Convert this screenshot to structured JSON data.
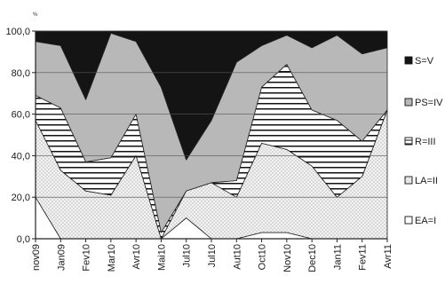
{
  "chart_data": {
    "type": "area",
    "stacked": true,
    "ylabel": "%",
    "ylim": [
      0,
      100
    ],
    "yticks": [
      "0,0",
      "20,0",
      "40,0",
      "60,0",
      "80,0",
      "100,0"
    ],
    "tick_labels": [
      "nov09",
      "Jan09",
      "Fev10",
      "Mar10",
      "Avr10",
      "Mai10",
      "Jul10",
      "Jul10",
      "Aut10",
      "Oct10",
      "Nov10",
      "Dec10",
      "Jan11",
      "Fev11",
      "Avr11"
    ],
    "x": [
      0,
      1,
      2,
      3,
      4,
      5,
      6,
      7,
      8,
      9,
      10,
      11,
      12,
      13,
      14
    ],
    "series": [
      {
        "name": "EA=I",
        "values": [
          20,
          0,
          0,
          0,
          0,
          0,
          10,
          0,
          0,
          3,
          3,
          0,
          0,
          0,
          0
        ],
        "color": "#ffffff"
      },
      {
        "name": "LA=II",
        "values": [
          37,
          33,
          23,
          21,
          40,
          0,
          13,
          27,
          20,
          43,
          40,
          35,
          20,
          30,
          62
        ],
        "color": "#e8e8e8"
      },
      {
        "name": "R=III",
        "values": [
          12,
          30,
          14,
          18,
          20,
          3,
          0,
          0,
          8,
          27,
          41,
          27,
          37,
          17,
          0
        ],
        "color": "#ffffff"
      },
      {
        "name": "PS=IV",
        "values": [
          26,
          30,
          30,
          60,
          35,
          70,
          15,
          30,
          57,
          20,
          14,
          30,
          41,
          42,
          30
        ],
        "color": "#b8b8b8"
      },
      {
        "name": "S=V",
        "values": [
          5,
          7,
          33,
          1,
          5,
          27,
          62,
          43,
          15,
          7,
          2,
          8,
          2,
          11,
          8
        ],
        "color": "#141414"
      }
    ],
    "grid": "horizontal",
    "legend": "right"
  }
}
